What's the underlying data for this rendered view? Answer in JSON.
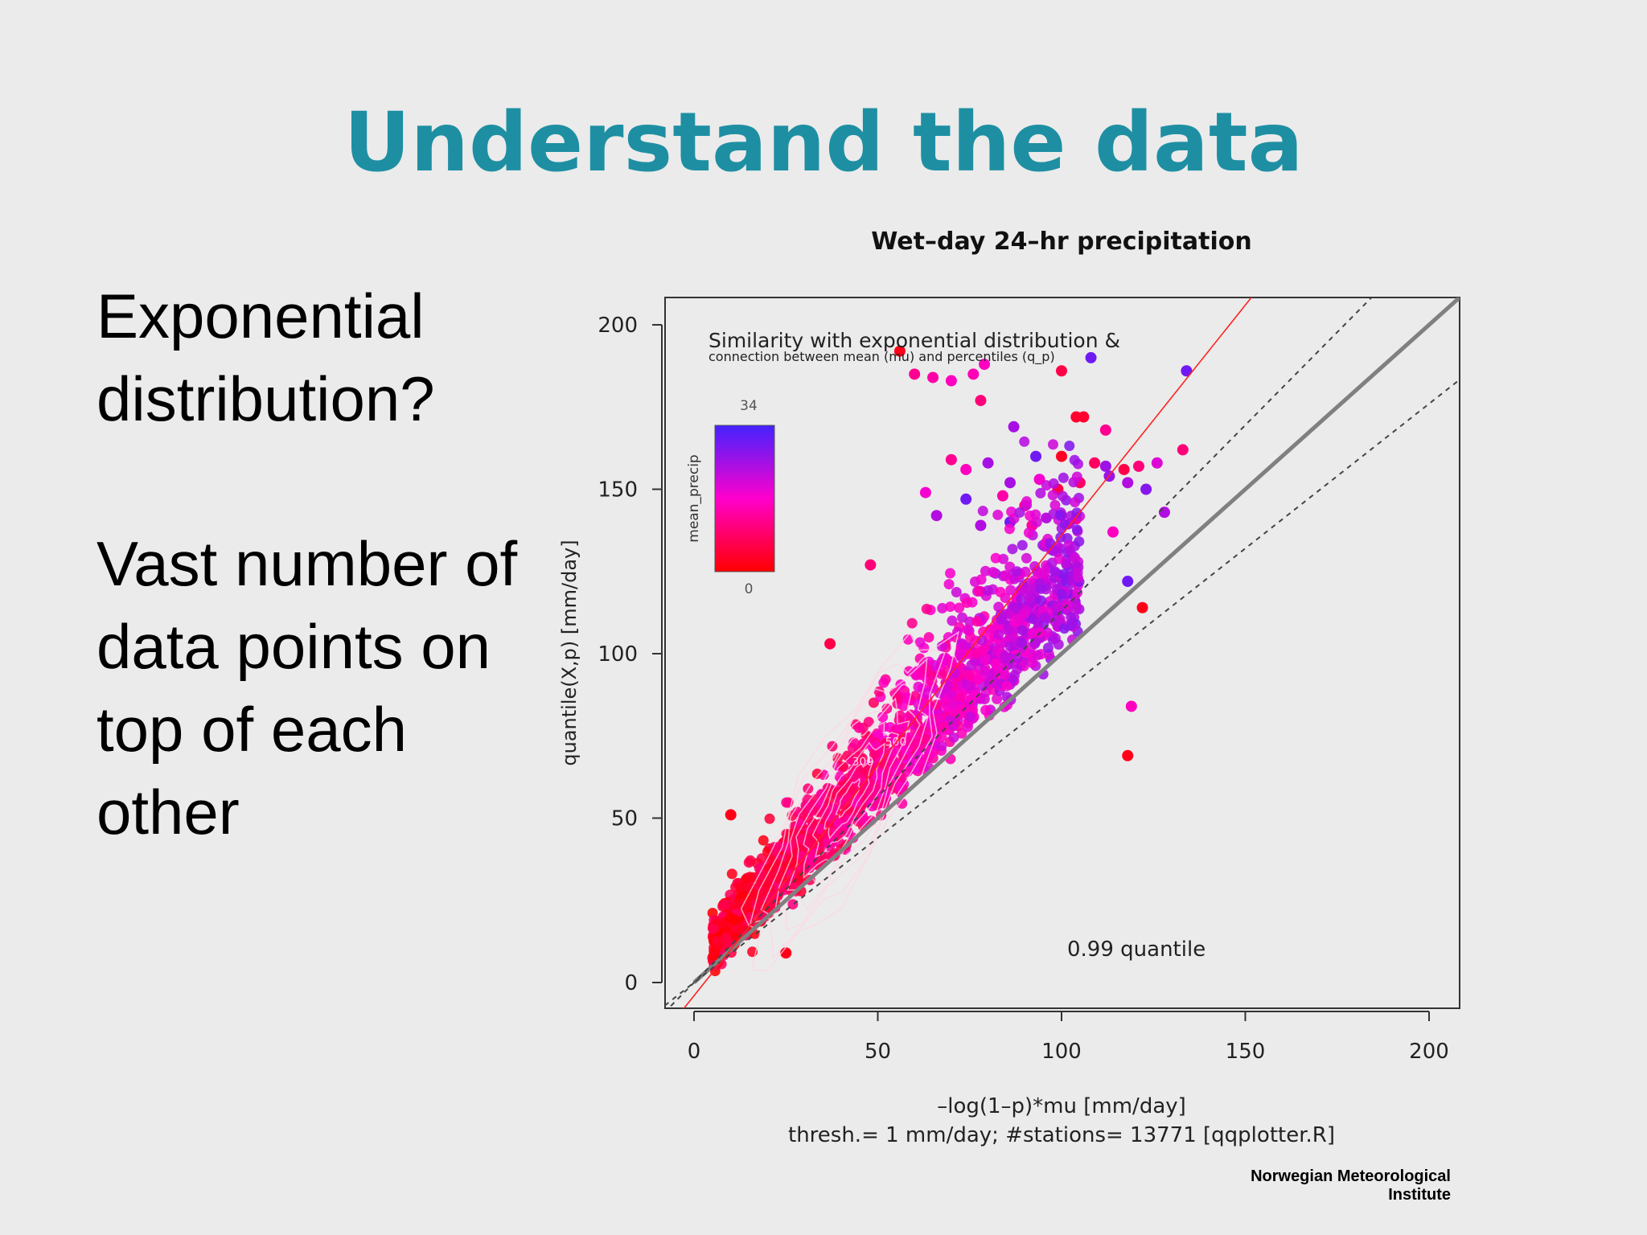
{
  "slide": {
    "title": "Understand the data",
    "bullets": [
      "Exponential distribution?",
      "Vast number of data points on top of each other"
    ],
    "credit": "Norwegian Meteorological Institute",
    "title_color": "#1e8fa3"
  },
  "chart_data": {
    "type": "scatter",
    "title": "Wet–day 24–hr precipitation",
    "inner_title": "Similarity with exponential distribution &",
    "inner_subtitle": "connection between mean (mu) and percentiles (q_p)",
    "xlabel": "–log(1–p)*mu [mm/day]",
    "ylabel": "quantile(X,p) [mm/day]",
    "footnote": "thresh.=  1 mm/day; #stations= 13771  [qqplotter.R]",
    "annotation": "0.99  quantile",
    "xlim": [
      -8,
      208
    ],
    "ylim": [
      -8,
      208
    ],
    "x_ticks": [
      0,
      50,
      100,
      150,
      200
    ],
    "y_ticks": [
      0,
      50,
      100,
      150,
      200
    ],
    "grid": false,
    "colorbar": {
      "label": "mean_precip",
      "min": 0,
      "max": 34,
      "min_color": "#ff0000",
      "mid_color": "#ff00cc",
      "max_color": "#4422ff"
    },
    "reference_lines": [
      {
        "name": "identity",
        "slope": 1.0,
        "intercept": 0,
        "style": "solid",
        "color": "#808080"
      },
      {
        "name": "upper bound",
        "slope": 1.13,
        "intercept": 0,
        "style": "dashed",
        "color": "#444444"
      },
      {
        "name": "lower bound",
        "slope": 0.88,
        "intercept": 0,
        "style": "dashed",
        "color": "#444444"
      },
      {
        "name": "fit",
        "slope": 1.4,
        "intercept": -4,
        "style": "solid",
        "color": "#ff2222"
      }
    ],
    "contour_labels": [
      "500",
      "300"
    ],
    "points": [
      [
        56,
        192,
        2
      ],
      [
        60,
        185,
        12
      ],
      [
        65,
        184,
        14
      ],
      [
        70,
        183,
        16
      ],
      [
        76,
        185,
        15
      ],
      [
        79,
        188,
        16
      ],
      [
        100,
        186,
        6
      ],
      [
        108,
        190,
        30
      ],
      [
        134,
        186,
        30
      ],
      [
        78,
        177,
        10
      ],
      [
        87,
        169,
        25
      ],
      [
        104,
        172,
        4
      ],
      [
        106,
        172,
        4
      ],
      [
        112,
        168,
        12
      ],
      [
        100,
        160,
        3
      ],
      [
        109,
        158,
        8
      ],
      [
        112,
        157,
        26
      ],
      [
        117,
        156,
        6
      ],
      [
        121,
        157,
        10
      ],
      [
        126,
        158,
        20
      ],
      [
        133,
        162,
        10
      ],
      [
        63,
        149,
        18
      ],
      [
        70,
        159,
        12
      ],
      [
        74,
        156,
        16
      ],
      [
        80,
        158,
        25
      ],
      [
        86,
        152,
        25
      ],
      [
        93,
        160,
        30
      ],
      [
        94,
        153,
        18
      ],
      [
        99,
        150,
        6
      ],
      [
        105,
        152,
        8
      ],
      [
        113,
        154,
        26
      ],
      [
        118,
        152,
        24
      ],
      [
        123,
        150,
        28
      ],
      [
        66,
        142,
        24
      ],
      [
        74,
        147,
        30
      ],
      [
        84,
        148,
        14
      ],
      [
        90,
        145,
        12
      ],
      [
        78,
        139,
        24
      ],
      [
        86,
        140,
        30
      ],
      [
        92,
        139,
        14
      ],
      [
        100,
        142,
        20
      ],
      [
        104,
        141,
        12
      ],
      [
        114,
        137,
        16
      ],
      [
        128,
        143,
        24
      ],
      [
        118,
        122,
        30
      ],
      [
        122,
        114,
        2
      ],
      [
        119,
        84,
        16
      ],
      [
        118,
        69,
        2
      ],
      [
        10,
        51,
        2
      ],
      [
        25,
        9,
        2
      ],
      [
        48,
        127,
        10
      ],
      [
        37,
        103,
        6
      ]
    ]
  }
}
